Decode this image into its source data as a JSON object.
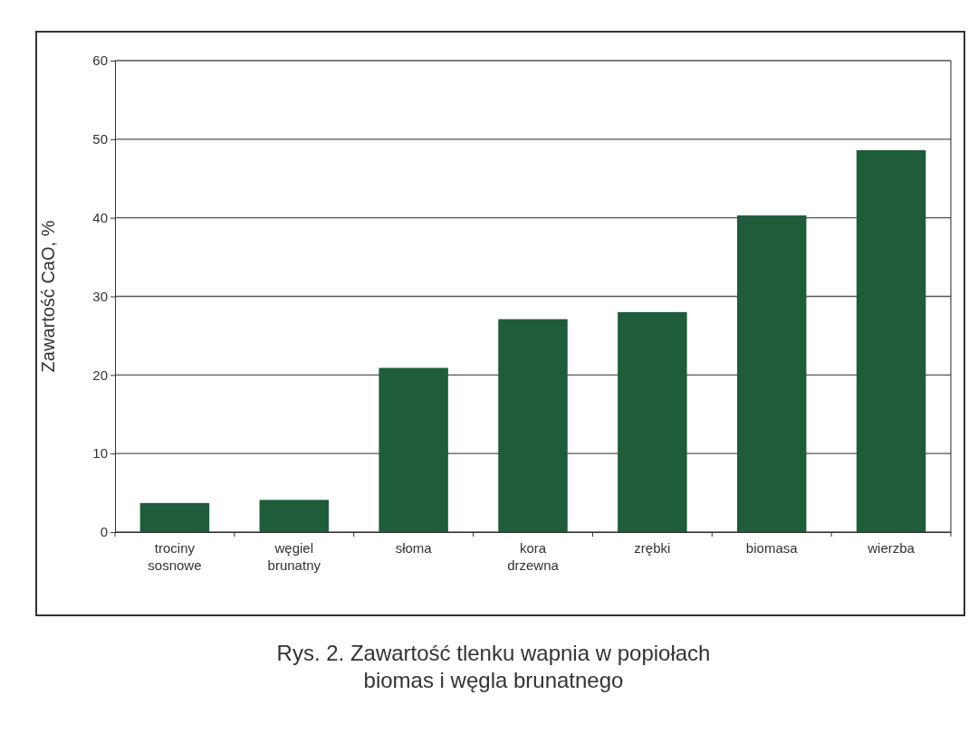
{
  "chart_data": {
    "type": "bar",
    "title": "Rys. 2. Zawartość tlenku wapnia w popiołach biomas i węgla brunatnego",
    "ylabel": "Zawartość CaO, %",
    "categories": [
      "trociny sosnowe",
      "węgiel brunatny",
      "słoma",
      "kora drzewna",
      "zrębki",
      "biomasa",
      "wierzba"
    ],
    "values": [
      3.7,
      4.1,
      20.9,
      27.1,
      28.0,
      40.3,
      48.6
    ],
    "color": "#1e5c3a",
    "ylim": [
      0,
      60
    ],
    "yticks": [
      0,
      10,
      20,
      30,
      40,
      50,
      60
    ],
    "grid": "y"
  }
}
